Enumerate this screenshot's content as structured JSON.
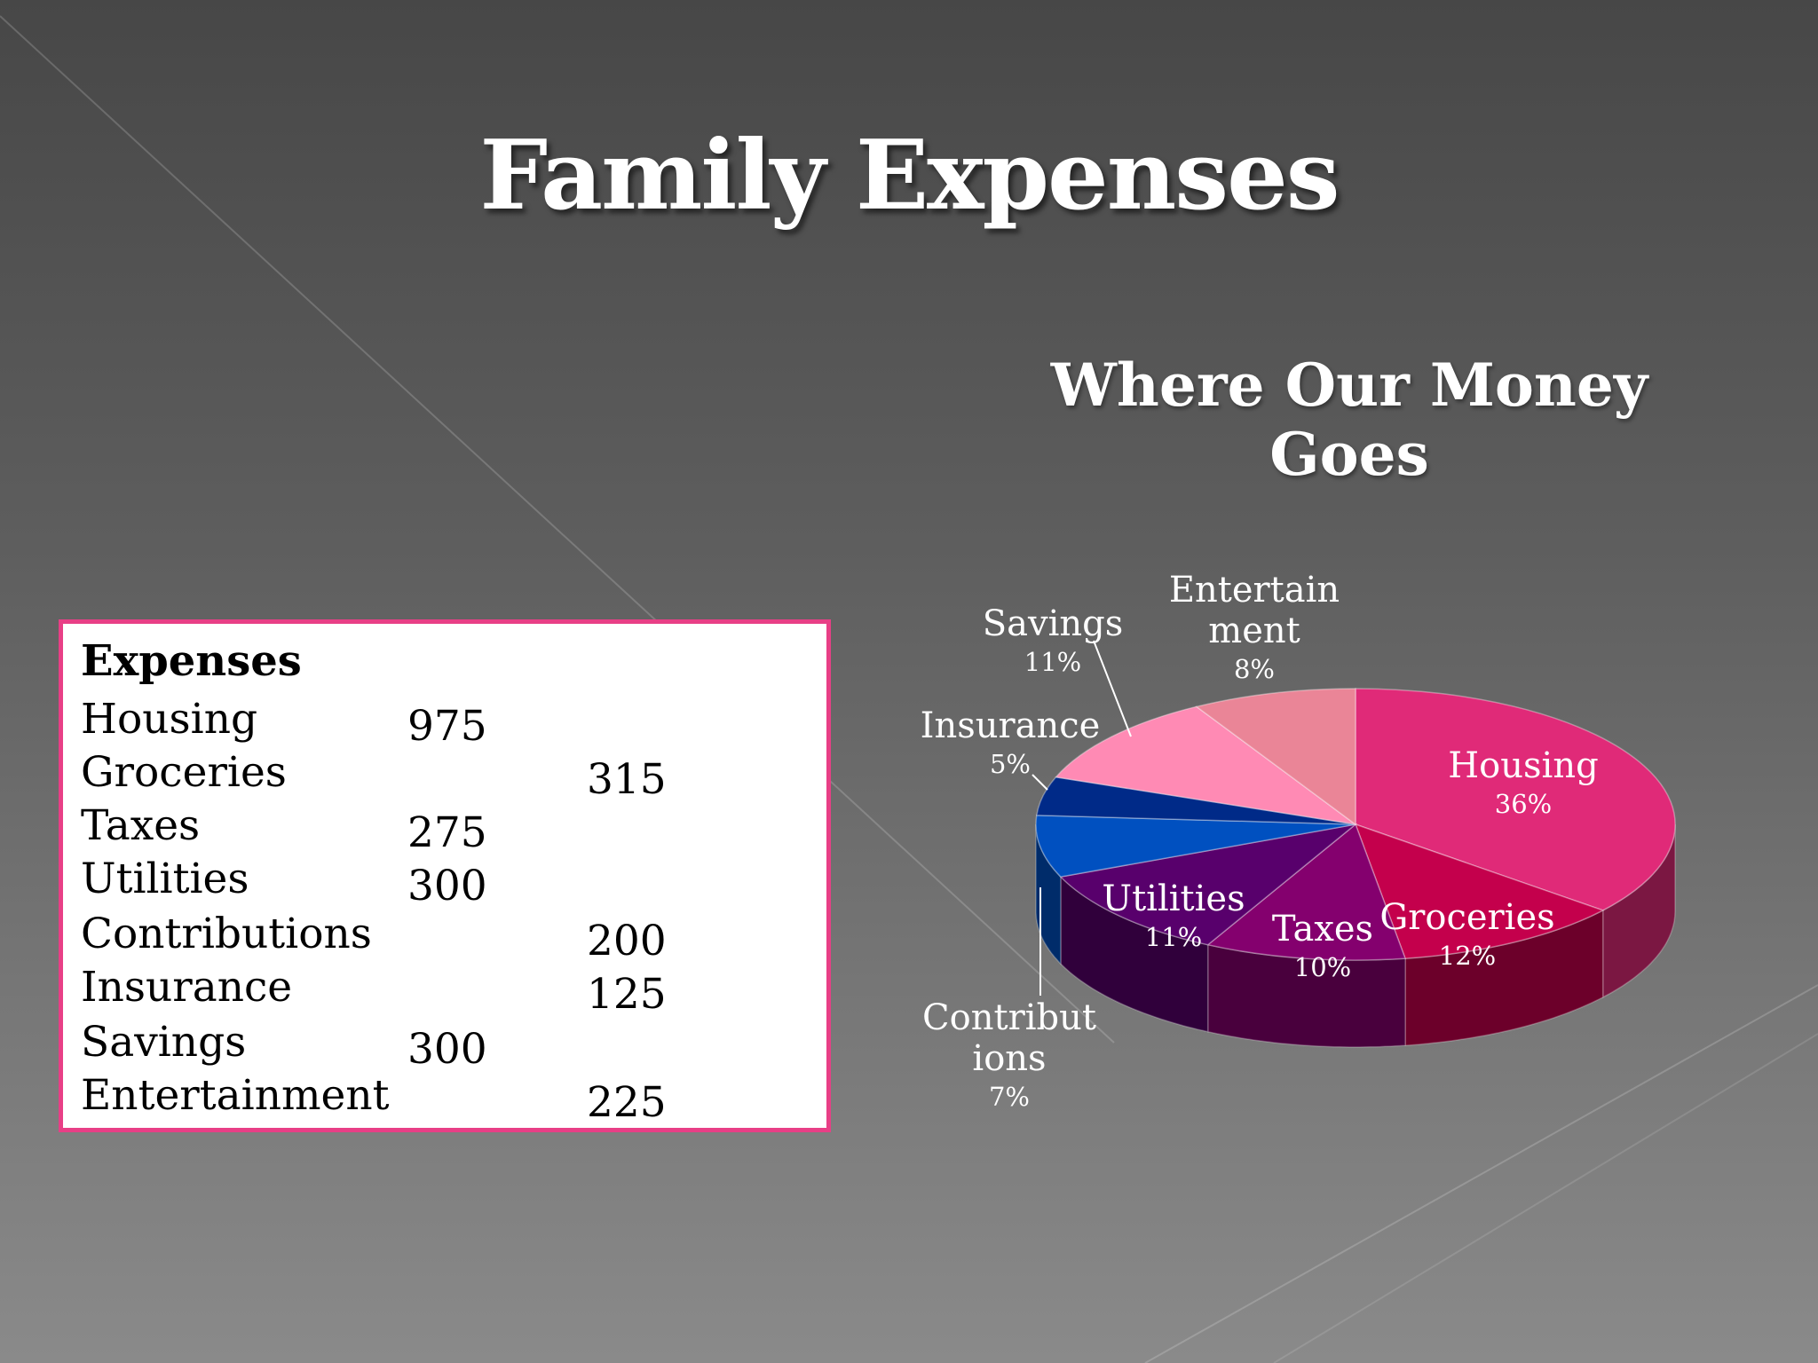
{
  "slide": {
    "title": "Family Expenses"
  },
  "table": {
    "header": "Expenses",
    "rows": [
      {
        "label": "Housing",
        "col1": "975",
        "col2": ""
      },
      {
        "label": "Groceries",
        "col1": "",
        "col2": "315"
      },
      {
        "label": "Taxes",
        "col1": "275",
        "col2": ""
      },
      {
        "label": "Utilities",
        "col1": "300",
        "col2": ""
      },
      {
        "label": "Contributions",
        "col1": "",
        "col2": "200"
      },
      {
        "label": "Insurance",
        "col1": "",
        "col2": "125"
      },
      {
        "label": "Savings",
        "col1": "300",
        "col2": ""
      },
      {
        "label": "Entertainment",
        "col1": "",
        "col2": "225"
      }
    ]
  },
  "colors": {
    "table_border": "#e83f86",
    "title_text": "#ffffff"
  },
  "chart_data": {
    "type": "pie",
    "title": "Where Our Money Goes",
    "legend": "none",
    "slices": [
      {
        "name": "Housing",
        "label_lines": [
          "Housing"
        ],
        "percent_label": "36%",
        "value": 975,
        "color": "#e02a78"
      },
      {
        "name": "Groceries",
        "label_lines": [
          "Groceries"
        ],
        "percent_label": "12%",
        "value": 315,
        "color": "#c4004c"
      },
      {
        "name": "Taxes",
        "label_lines": [
          "Taxes"
        ],
        "percent_label": "10%",
        "value": 275,
        "color": "#84006e"
      },
      {
        "name": "Utilities",
        "label_lines": [
          "Utilities"
        ],
        "percent_label": "11%",
        "value": 300,
        "color": "#58006c"
      },
      {
        "name": "Contributions",
        "label_lines": [
          "Contribut",
          "ions"
        ],
        "percent_label": "7%",
        "value": 200,
        "color": "#0050c0"
      },
      {
        "name": "Insurance",
        "label_lines": [
          "Insurance"
        ],
        "percent_label": "5%",
        "value": 125,
        "color": "#002a88"
      },
      {
        "name": "Savings",
        "label_lines": [
          "Savings"
        ],
        "percent_label": "11%",
        "value": 300,
        "color": "#ff8ab4"
      },
      {
        "name": "Entertainment",
        "label_lines": [
          "Entertain",
          "ment"
        ],
        "percent_label": "8%",
        "value": 225,
        "color": "#ea8597"
      }
    ]
  }
}
